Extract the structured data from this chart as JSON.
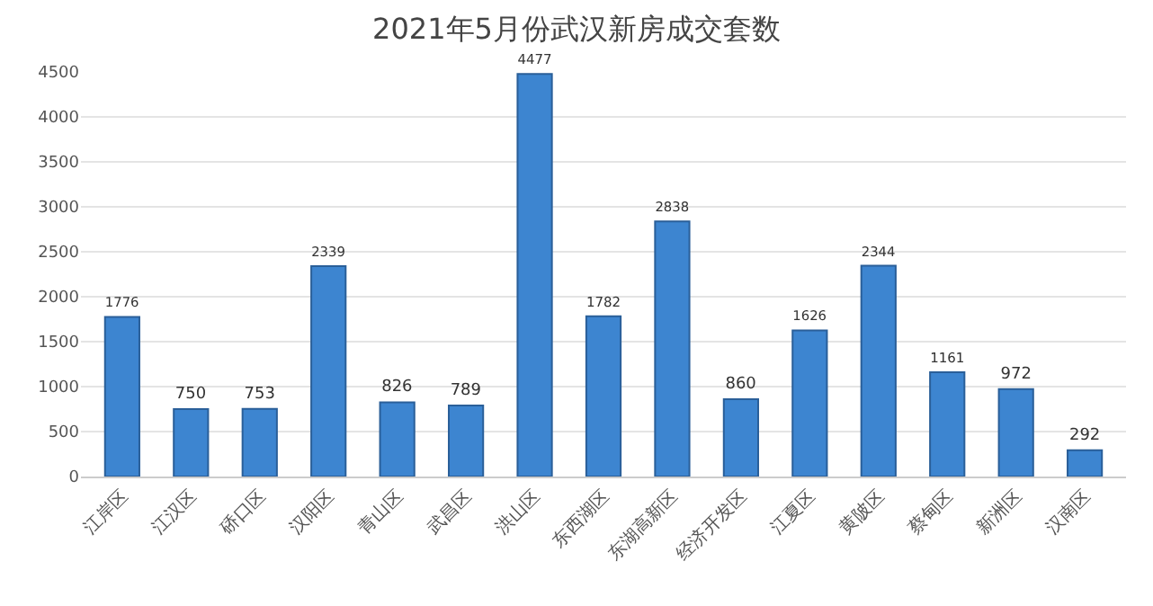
{
  "chart_data": {
    "type": "bar",
    "title": "2021年5月份武汉新房成交套数",
    "categories": [
      "江岸区",
      "江汉区",
      "硚口区",
      "汉阳区",
      "青山区",
      "武昌区",
      "洪山区",
      "东西湖区",
      "东湖高新区",
      "经济开发区",
      "江夏区",
      "黄陂区",
      "蔡甸区",
      "新洲区",
      "汉南区"
    ],
    "values": [
      1776,
      750,
      753,
      2339,
      826,
      789,
      4477,
      1782,
      2838,
      860,
      1626,
      2344,
      1161,
      972,
      292
    ],
    "color": "#3d85d0",
    "data_labels": true,
    "ylim": [
      0,
      4500
    ],
    "yticks": [
      0,
      500,
      1000,
      1500,
      2000,
      2500,
      3000,
      3500,
      4000,
      4500
    ],
    "grid": "y"
  }
}
